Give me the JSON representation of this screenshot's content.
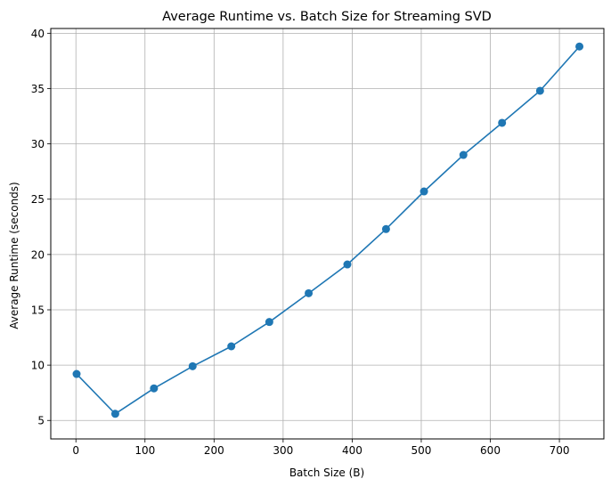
{
  "chart_data": {
    "type": "line",
    "title": "Average Runtime vs. Batch Size for Streaming SVD",
    "xlabel": "Batch Size (B)",
    "ylabel": "Average Runtime (seconds)",
    "xlim": [
      -36.4,
      764.4
    ],
    "ylim": [
      3.33,
      40.43
    ],
    "xticks": [
      0,
      100,
      200,
      300,
      400,
      500,
      600,
      700
    ],
    "yticks": [
      5,
      10,
      15,
      20,
      25,
      30,
      35,
      40
    ],
    "grid": true,
    "legend": "none",
    "series": [
      {
        "color": "#1f77b4",
        "marker": "circle",
        "x": [
          1,
          57,
          113,
          169,
          225,
          280,
          337,
          393,
          449,
          504,
          561,
          617,
          672,
          729
        ],
        "y": [
          9.2,
          5.6,
          7.9,
          9.9,
          11.7,
          13.9,
          16.5,
          19.1,
          22.3,
          25.7,
          29.0,
          31.9,
          34.8,
          38.8
        ]
      }
    ]
  }
}
